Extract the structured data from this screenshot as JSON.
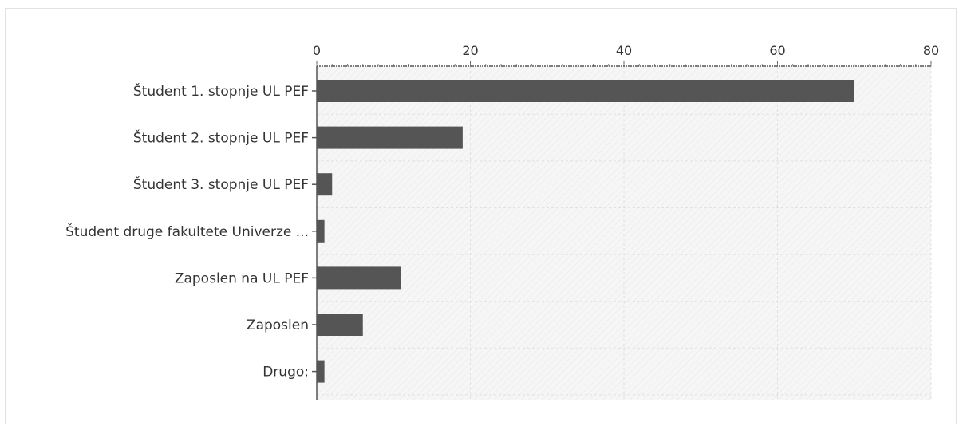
{
  "chart_data": {
    "type": "bar",
    "orientation": "horizontal",
    "categories": [
      "Študent 1. stopnje UL PEF",
      "Študent 2. stopnje UL PEF",
      "Študent 3. stopnje UL PEF",
      "Študent druge fakultete Univerze ...",
      "Zaposlen na UL PEF",
      "Zaposlen",
      "Drugo:"
    ],
    "values": [
      70,
      19,
      2,
      1,
      11,
      6,
      1
    ],
    "xlim": [
      0,
      80
    ],
    "xticks": [
      "0",
      "20",
      "40",
      "60",
      "80"
    ],
    "x_axis_position": "top",
    "grid": true,
    "bar_color": "#555555",
    "plot_background": "#f6f6f6",
    "grid_color": "#e0e0e0"
  }
}
